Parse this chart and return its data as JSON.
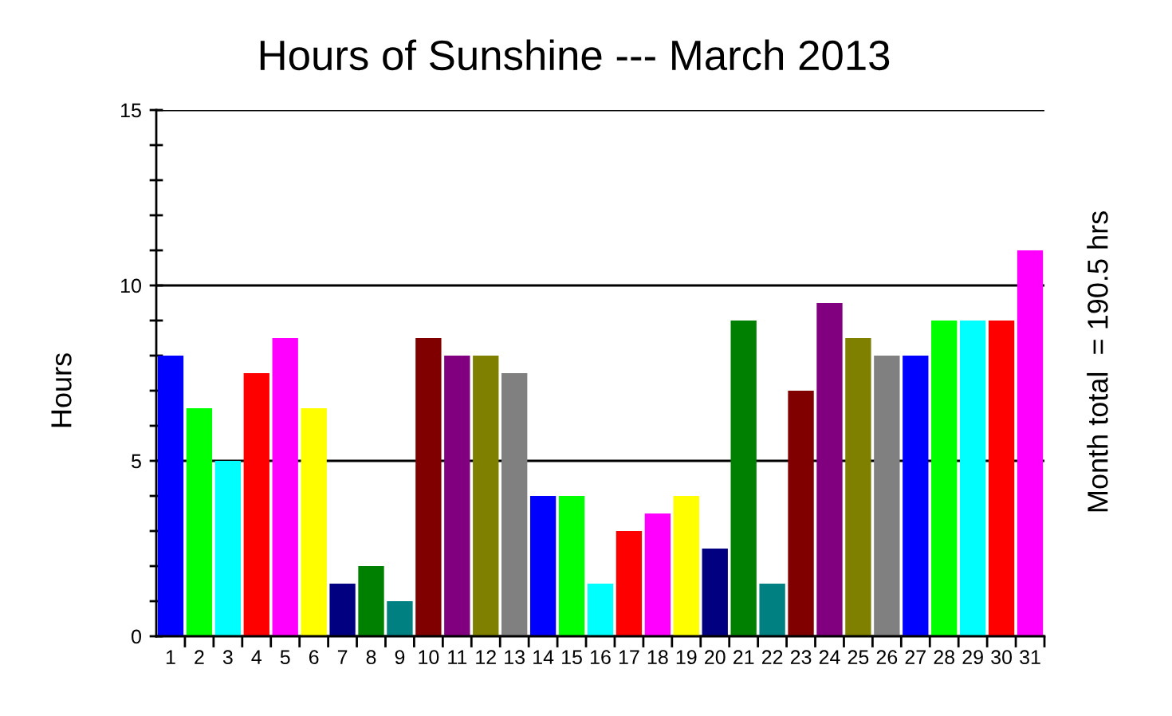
{
  "chart_data": {
    "type": "bar",
    "title": "Hours of Sunshine --- March 2013",
    "ylabel": "Hours",
    "annotations": [
      "Month total  = 190.5 hrs"
    ],
    "categories": [
      "1",
      "2",
      "3",
      "4",
      "5",
      "6",
      "7",
      "8",
      "9",
      "10",
      "11",
      "12",
      "13",
      "14",
      "15",
      "16",
      "17",
      "18",
      "19",
      "20",
      "21",
      "22",
      "23",
      "24",
      "25",
      "26",
      "27",
      "28",
      "29",
      "30",
      "31"
    ],
    "values": [
      8,
      6.5,
      5,
      7.5,
      8.5,
      6.5,
      1.5,
      2,
      1,
      8.5,
      8,
      8,
      7.5,
      4,
      4,
      1.5,
      3,
      3.5,
      4,
      2.5,
      9,
      1.5,
      7,
      9.5,
      8.5,
      8,
      8,
      9,
      9,
      9,
      11
    ],
    "colors": [
      "#0000ff",
      "#00ff00",
      "#00ffff",
      "#ff0000",
      "#ff00ff",
      "#ffff00",
      "#000080",
      "#008000",
      "#008080",
      "#800000",
      "#800080",
      "#808000",
      "#808080",
      "#0000ff",
      "#00ff00",
      "#00ffff",
      "#ff0000",
      "#ff00ff",
      "#ffff00",
      "#000080",
      "#008000",
      "#008080",
      "#800000",
      "#800080",
      "#808000",
      "#808080",
      "#0000ff",
      "#00ff00",
      "#00ffff",
      "#ff0000",
      "#ff00ff"
    ],
    "ylim": [
      0,
      15
    ],
    "yticks": [
      0,
      5,
      10,
      15
    ],
    "grid": "y"
  }
}
